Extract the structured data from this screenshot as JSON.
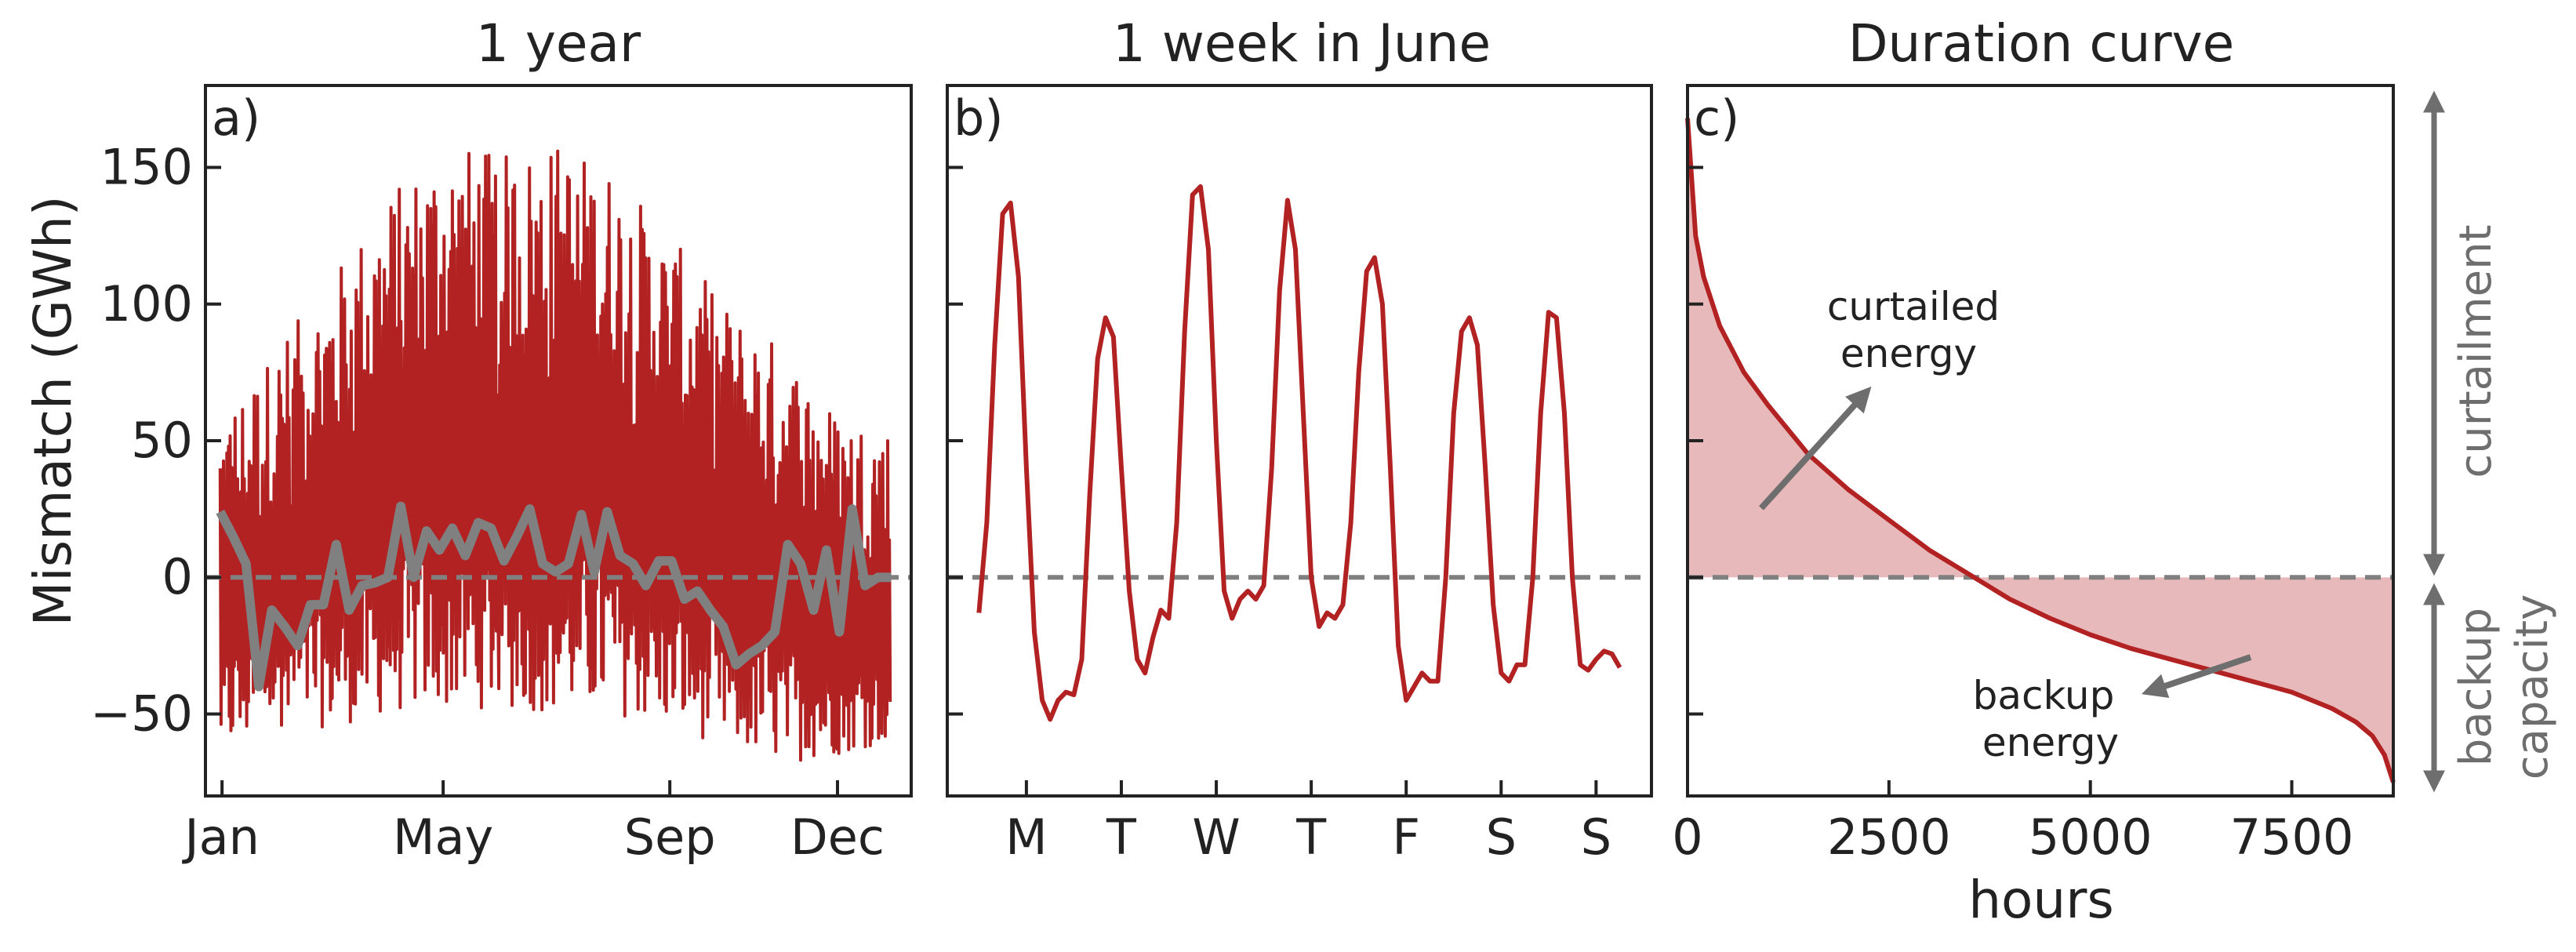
{
  "colors": {
    "mismatch_line": "#b22222",
    "monthly_mean_line": "#808080",
    "fill": "#e8b9ba",
    "zero_line": "#808080",
    "annotation_arrow": "#6e6e6e",
    "text": "#222222"
  },
  "y_axis": {
    "label": "Mismatch (GWh)",
    "ticks": [
      "150",
      "100",
      "50",
      "0",
      "−50"
    ],
    "tick_values": [
      150,
      100,
      50,
      0,
      -50
    ],
    "ylim": [
      -80,
      180
    ]
  },
  "side_labels": {
    "curtailment": "curtailment",
    "backup_line1": "backup",
    "backup_line2": "capacity"
  },
  "chart_data": [
    {
      "id": "a",
      "panel_letter": "a)",
      "title": "1 year",
      "type": "line",
      "xlabel": "",
      "ylabel": "Mismatch (GWh)",
      "ylim": [
        -80,
        180
      ],
      "x_ticks": [
        "Jan",
        "May",
        "Sep",
        "Dec"
      ],
      "x_tick_days": [
        1,
        121,
        244,
        335
      ],
      "xlim_days": [
        -8,
        375
      ],
      "hourly_envelope": {
        "name": "",
        "month_days": [
          1,
          32,
          60,
          91,
          121,
          152,
          182,
          213,
          244,
          274,
          305,
          335,
          365
        ],
        "upper": [
          60,
          85,
          110,
          140,
          160,
          155,
          160,
          150,
          125,
          100,
          85,
          60,
          55
        ],
        "lower": [
          -65,
          -55,
          -55,
          -50,
          -48,
          -48,
          -50,
          -50,
          -55,
          -62,
          -68,
          -65,
          -60
        ]
      },
      "series": [
        {
          "name": "",
          "days": [
            0,
            7,
            14,
            21,
            28,
            35,
            42,
            49,
            56,
            63,
            70,
            77,
            84,
            91,
            98,
            105,
            112,
            119,
            126,
            133,
            140,
            147,
            154,
            161,
            168,
            175,
            182,
            189,
            196,
            203,
            210,
            217,
            224,
            231,
            238,
            245,
            252,
            259,
            266,
            273,
            280,
            287,
            294,
            301,
            308,
            315,
            322,
            329,
            336,
            343,
            350,
            357,
            364
          ],
          "values": [
            24,
            15,
            5,
            -40,
            -12,
            -18,
            -25,
            -10,
            -10,
            12,
            -12,
            -3,
            -2,
            0,
            26,
            0,
            17,
            10,
            18,
            8,
            20,
            18,
            6,
            15,
            25,
            5,
            2,
            5,
            23,
            2,
            24,
            8,
            5,
            -3,
            6,
            6,
            -8,
            -5,
            -12,
            -18,
            -32,
            -28,
            -25,
            -20,
            12,
            5,
            -12,
            10,
            -20,
            25,
            -3,
            0,
            0
          ]
        }
      ],
      "reference_line": 0
    },
    {
      "id": "b",
      "panel_letter": "b)",
      "title": "1 week in June",
      "type": "line",
      "xlabel": "",
      "ylabel": "",
      "ylim": [
        -80,
        180
      ],
      "x_ticks": [
        "M",
        "T",
        "W",
        "T",
        "F",
        "S",
        "S"
      ],
      "xlim_hours": [
        -8,
        170
      ],
      "series": [
        {
          "name": "",
          "hours": [
            0,
            2,
            4,
            6,
            8,
            10,
            12,
            14,
            16,
            18,
            20,
            22,
            24,
            26,
            28,
            30,
            32,
            34,
            36,
            38,
            40,
            42,
            44,
            46,
            48,
            50,
            52,
            54,
            56,
            58,
            60,
            62,
            64,
            66,
            68,
            70,
            72,
            74,
            76,
            78,
            80,
            82,
            84,
            86,
            88,
            90,
            92,
            94,
            96,
            98,
            100,
            102,
            104,
            106,
            108,
            110,
            112,
            114,
            116,
            118,
            120,
            122,
            124,
            126,
            128,
            130,
            132,
            134,
            136,
            138,
            140,
            142,
            144,
            146,
            148,
            150,
            152,
            154,
            156,
            158,
            160,
            162
          ],
          "values": [
            -13,
            20,
            85,
            133,
            137,
            110,
            40,
            -20,
            -45,
            -52,
            -45,
            -42,
            -43,
            -30,
            30,
            80,
            95,
            88,
            40,
            -5,
            -30,
            -35,
            -22,
            -12,
            -15,
            20,
            90,
            140,
            143,
            120,
            50,
            -5,
            -15,
            -8,
            -5,
            -8,
            -3,
            40,
            105,
            138,
            120,
            60,
            0,
            -18,
            -13,
            -15,
            -10,
            20,
            75,
            112,
            117,
            100,
            40,
            -25,
            -45,
            -40,
            -35,
            -38,
            -38,
            0,
            60,
            90,
            95,
            85,
            40,
            -10,
            -35,
            -38,
            -32,
            -32,
            0,
            60,
            97,
            95,
            60,
            0,
            -32,
            -34,
            -30,
            -27,
            -28,
            -33
          ]
        }
      ],
      "reference_line": 0
    },
    {
      "id": "c",
      "panel_letter": "c)",
      "title": "Duration curve",
      "type": "area",
      "xlabel": "hours",
      "ylabel": "",
      "ylim": [
        -80,
        180
      ],
      "x_ticks": [
        "0",
        "2500",
        "5000",
        "7500"
      ],
      "x_tick_values": [
        0,
        2500,
        5000,
        7500
      ],
      "xlim": [
        0,
        8760
      ],
      "series": [
        {
          "name": "",
          "hours": [
            0,
            100,
            200,
            400,
            700,
            1000,
            1500,
            2000,
            2500,
            3000,
            3500,
            4000,
            4500,
            5000,
            5500,
            6000,
            6500,
            7000,
            7500,
            8000,
            8300,
            8500,
            8650,
            8760
          ],
          "values": [
            168,
            125,
            110,
            92,
            75,
            63,
            45,
            32,
            21,
            10,
            1,
            -8,
            -15,
            -21,
            -26,
            -30,
            -34,
            -38,
            -42,
            -48,
            -53,
            -58,
            -65,
            -75
          ]
        }
      ],
      "reference_line": 0,
      "annotations": [
        {
          "text": [
            "curtailed",
            "energy"
          ],
          "arrow": "up-right"
        },
        {
          "text": [
            "backup",
            "energy"
          ],
          "arrow": "down-left"
        }
      ]
    }
  ]
}
